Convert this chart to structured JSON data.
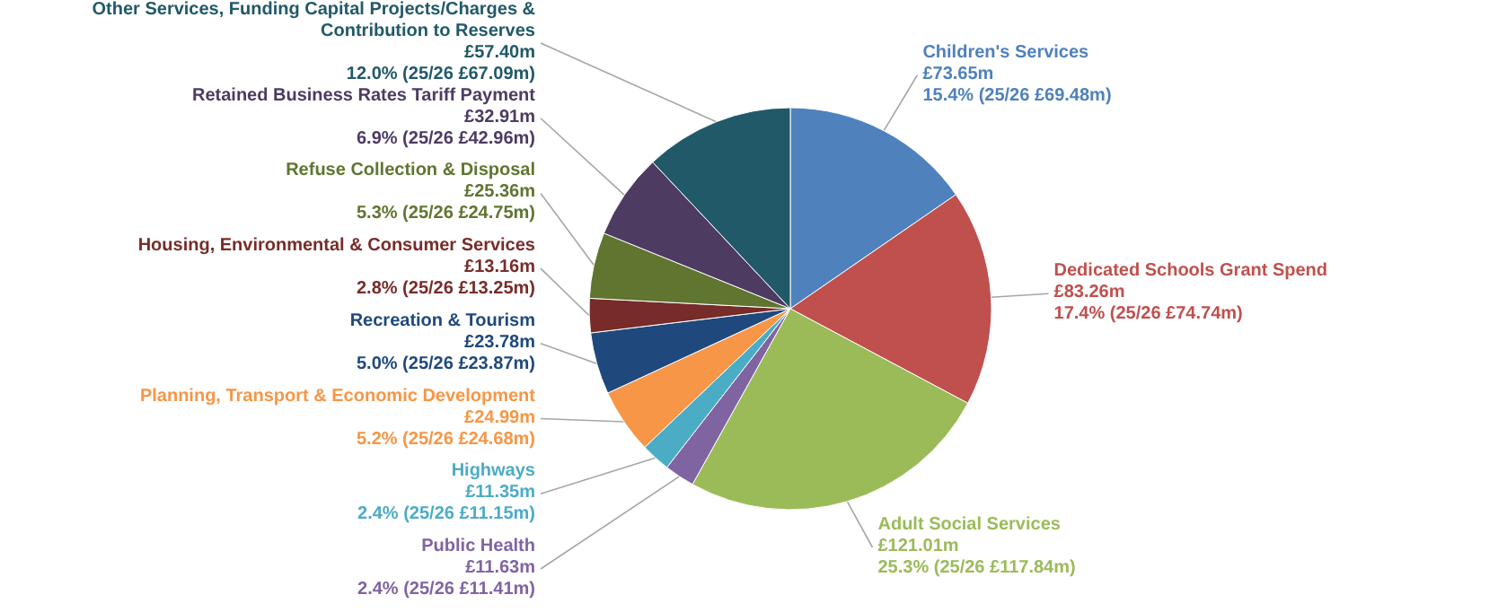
{
  "chart_data": {
    "type": "pie",
    "categories": [
      "Children's Services",
      "Dedicated Schools Grant Spend",
      "Adult Social Services",
      "Public Health",
      "Highways",
      "Planning, Transport & Economic Development",
      "Recreation & Tourism",
      "Housing, Environmental & Consumer Services",
      "Refuse Collection & Disposal",
      "Retained Business Rates Tariff Payment",
      "Other Services, Funding Capital Projects/Charges & Contribution to Reserves"
    ],
    "values": [
      73.65,
      83.26,
      121.01,
      11.63,
      11.35,
      24.99,
      23.78,
      13.16,
      25.36,
      32.91,
      57.4
    ],
    "value_labels": [
      "£73.65m",
      "£83.26m",
      "£121.01m",
      "£11.63m",
      "£11.35m",
      "£24.99m",
      "£23.78m",
      "£13.16m",
      "£25.36m",
      "£32.91m",
      "£57.40m"
    ],
    "annotations": [
      "15.4% (25/26 £69.48m)",
      "17.4% (25/26 £74.74m)",
      "25.3% (25/26 £117.84m)",
      "2.4% (25/26 £11.41m)",
      "2.4% (25/26 £11.15m)",
      "5.2% (25/26 £24.68m)",
      "5.0% (25/26 £23.87m)",
      "2.8% (25/26 £13.25m)",
      "5.3% (25/26 £24.75m)",
      "6.9% (25/26 £42.96m)",
      "12.0% (25/26 £67.09m)"
    ],
    "colors": [
      "#4f81bd",
      "#c0504d",
      "#9bbb59",
      "#8064a2",
      "#4bacc6",
      "#f79646",
      "#1f497d",
      "#772c2a",
      "#5f7530",
      "#4d3b62",
      "#215968"
    ]
  }
}
